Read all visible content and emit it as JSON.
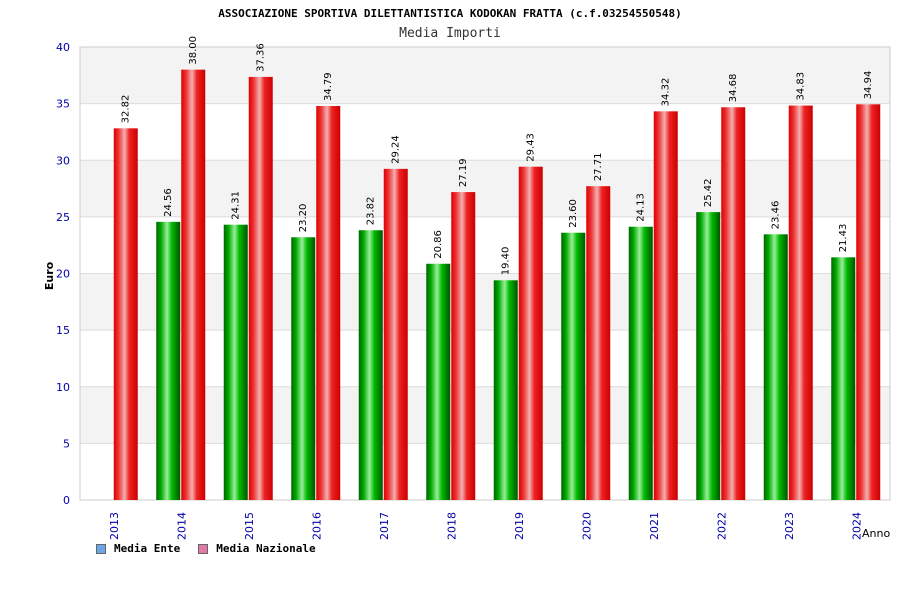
{
  "chart_data": {
    "type": "bar",
    "title": "ASSOCIAZIONE SPORTIVA DILETTANTISTICA KODOKAN FRATTA (c.f.03254550548)",
    "subtitle": "Media Importi",
    "xlabel": "Anno",
    "ylabel": "Euro",
    "ylim": [
      0,
      40
    ],
    "yticks": [
      "0",
      "5",
      "10",
      "15",
      "20",
      "25",
      "30",
      "35",
      "40"
    ],
    "grid": true,
    "legend_position": "bottom-left",
    "categories": [
      "2013",
      "2014",
      "2015",
      "2016",
      "2017",
      "2018",
      "2019",
      "2020",
      "2021",
      "2022",
      "2023",
      "2024"
    ],
    "series": [
      {
        "name": "Media Ente",
        "color": "#00aa00",
        "legend_color": "#6aa6e8",
        "values": [
          null,
          24.56,
          24.31,
          23.2,
          23.82,
          20.86,
          19.4,
          23.6,
          24.13,
          25.42,
          23.46,
          21.43
        ],
        "labels": [
          "",
          "24.56",
          "24.31",
          "23.20",
          "23.82",
          "20.86",
          "19.40",
          "23.60",
          "24.13",
          "25.42",
          "23.46",
          "21.43"
        ]
      },
      {
        "name": "Media Nazionale",
        "color": "#ee0000",
        "legend_color": "#e07aa8",
        "values": [
          32.82,
          38.0,
          37.36,
          34.79,
          29.24,
          27.19,
          29.43,
          27.71,
          34.32,
          34.68,
          34.83,
          34.94
        ],
        "labels": [
          "32.82",
          "38.00",
          "37.36",
          "34.79",
          "29.24",
          "27.19",
          "29.43",
          "27.71",
          "34.32",
          "34.68",
          "34.83",
          "34.94"
        ]
      }
    ]
  }
}
